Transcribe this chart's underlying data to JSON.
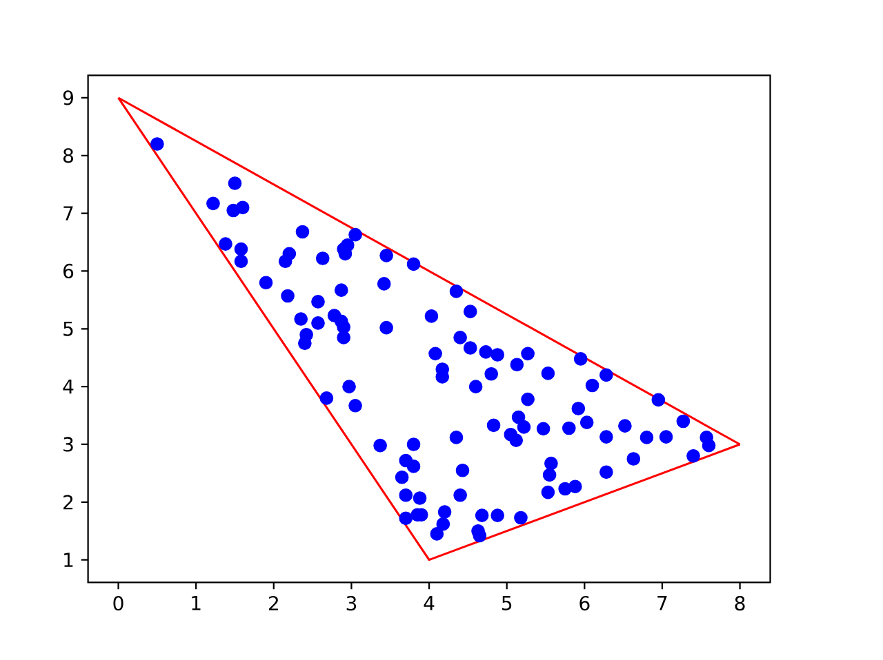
{
  "chart_data": {
    "type": "scatter",
    "xlim": [
      -0.39,
      8.39
    ],
    "ylim": [
      0.61,
      9.39
    ],
    "xticks": [
      0,
      1,
      2,
      3,
      4,
      5,
      6,
      7,
      8
    ],
    "yticks": [
      1,
      2,
      3,
      4,
      5,
      6,
      7,
      8,
      9
    ],
    "grid": false,
    "series": [
      {
        "color": "#0000ff",
        "marker": "circle",
        "x": [
          0.5,
          1.5,
          1.22,
          1.48,
          1.6,
          1.38,
          1.58,
          1.58,
          2.37,
          2.2,
          2.15,
          2.63,
          2.95,
          2.9,
          2.92,
          3.05,
          3.45,
          3.8,
          1.9,
          2.18,
          3.42,
          2.57,
          2.87,
          2.35,
          2.57,
          2.78,
          2.87,
          2.9,
          2.42,
          2.4,
          2.9,
          3.45,
          4.35,
          4.53,
          4.03,
          4.4,
          4.08,
          4.53,
          4.73,
          4.88,
          5.27,
          5.13,
          4.17,
          4.17,
          4.8,
          5.53,
          5.95,
          6.28,
          6.1,
          4.6,
          2.97,
          3.05,
          2.68,
          5.27,
          6.95,
          5.92,
          5.15,
          6.03,
          4.83,
          5.22,
          5.47,
          5.8,
          6.52,
          7.27,
          5.05,
          5.12,
          4.35,
          6.28,
          6.8,
          7.05,
          7.57,
          7.6,
          3.37,
          3.8,
          3.7,
          3.8,
          3.65,
          7.4,
          6.63,
          5.57,
          5.55,
          4.43,
          6.28,
          5.75,
          5.88,
          5.53,
          3.7,
          3.88,
          4.4,
          3.85,
          3.9,
          3.7,
          4.2,
          4.18,
          4.1,
          4.68,
          4.88,
          5.18,
          4.63,
          4.65
        ],
        "values": [
          8.2,
          7.52,
          7.17,
          7.05,
          7.1,
          6.47,
          6.38,
          6.17,
          6.68,
          6.3,
          6.17,
          6.22,
          6.45,
          6.38,
          6.3,
          6.63,
          6.27,
          6.12,
          5.8,
          5.57,
          5.78,
          5.47,
          5.67,
          5.17,
          5.1,
          5.23,
          5.13,
          5.03,
          4.9,
          4.75,
          4.85,
          5.02,
          5.65,
          5.3,
          5.22,
          4.85,
          4.57,
          4.67,
          4.6,
          4.55,
          4.57,
          4.38,
          4.3,
          4.17,
          4.22,
          4.23,
          4.48,
          4.2,
          4.02,
          4.0,
          4.0,
          3.67,
          3.8,
          3.78,
          3.77,
          3.62,
          3.47,
          3.38,
          3.33,
          3.3,
          3.27,
          3.28,
          3.32,
          3.4,
          3.17,
          3.07,
          3.12,
          3.13,
          3.12,
          3.13,
          3.12,
          2.98,
          2.98,
          3.0,
          2.72,
          2.62,
          2.43,
          2.8,
          2.75,
          2.67,
          2.47,
          2.55,
          2.52,
          2.23,
          2.27,
          2.17,
          2.12,
          2.07,
          2.12,
          1.78,
          1.78,
          1.72,
          1.83,
          1.62,
          1.45,
          1.77,
          1.77,
          1.73,
          1.5,
          1.42
        ]
      },
      {
        "type": "line",
        "color": "#ff0000",
        "marker": "none",
        "line_style": "solid",
        "x": [
          0,
          8
        ],
        "values": [
          9,
          3
        ]
      },
      {
        "type": "line",
        "color": "#ff0000",
        "marker": "none",
        "line_style": "solid",
        "x": [
          0,
          4,
          8
        ],
        "values": [
          9,
          1,
          3
        ]
      }
    ]
  }
}
